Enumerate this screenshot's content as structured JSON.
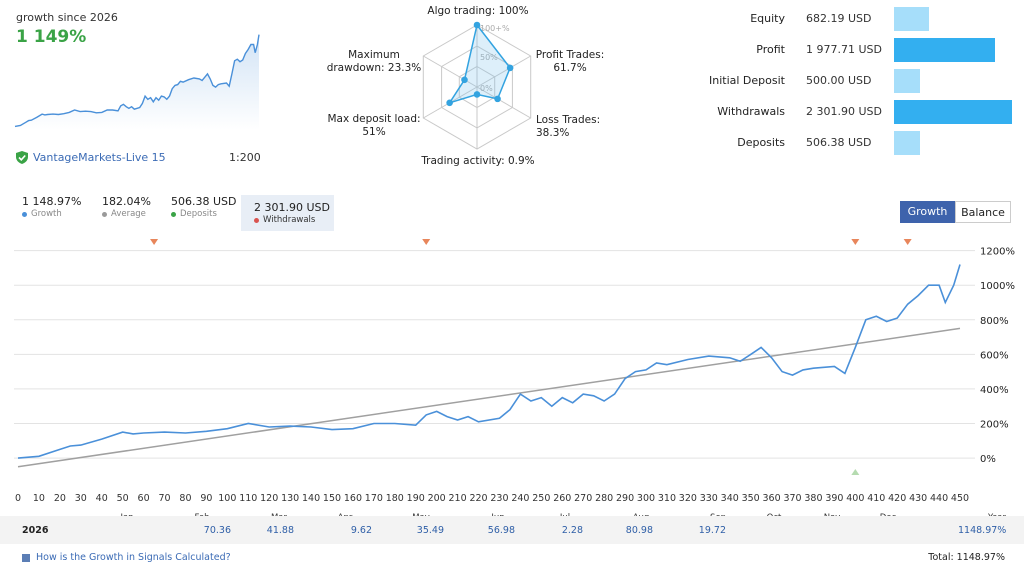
{
  "summary": {
    "growth_title": "growth since 2026",
    "growth_value": "1 149%",
    "broker": "VantageMarkets-Live 15",
    "leverage": "1:200",
    "growth_color": "#3aa346"
  },
  "radar": {
    "labels": {
      "algo": "Algo trading: 100%",
      "profit": [
        "Profit Trades:",
        "61.7%"
      ],
      "loss": "Loss Trades: 38.3%",
      "activity": "Trading activity: 0.9%",
      "load": [
        "Max deposit load:",
        "51%"
      ],
      "drawdown": [
        "Maximum",
        "drawdown: 23.3%"
      ]
    },
    "ticks": [
      "100+%",
      "50%",
      "0%"
    ],
    "values": [
      100,
      61.7,
      38.3,
      0.9,
      51,
      23.3
    ]
  },
  "stats": {
    "rows": [
      {
        "label": "Equity",
        "value": "682.19 USD",
        "amount": 682.19,
        "color": "#a6defa"
      },
      {
        "label": "Profit",
        "value": "1 977.71 USD",
        "amount": 1977.71,
        "color": "#33aff0"
      },
      {
        "label": "Initial Deposit",
        "value": "500.00 USD",
        "amount": 500.0,
        "color": "#a6defa"
      },
      {
        "label": "Withdrawals",
        "value": "2 301.90 USD",
        "amount": 2301.9,
        "color": "#33aff0"
      },
      {
        "label": "Deposits",
        "value": "506.38 USD",
        "amount": 506.38,
        "color": "#a6defa"
      }
    ]
  },
  "tabs": [
    {
      "value": "1 148.97%",
      "label": "Growth",
      "color": "#4a90d9"
    },
    {
      "value": "182.04%",
      "label": "Average",
      "color": "#9a9a9a"
    },
    {
      "value": "506.38 USD",
      "label": "Deposits",
      "color": "#3aa346"
    },
    {
      "value": "2 301.90 USD",
      "label": "Withdrawals",
      "color": "#d9534f"
    }
  ],
  "buttons": {
    "growth": "Growth",
    "balance": "Balance"
  },
  "chart_data": {
    "type": "line",
    "x_ticks": [
      0,
      10,
      20,
      30,
      40,
      50,
      60,
      70,
      80,
      90,
      100,
      110,
      120,
      130,
      140,
      150,
      160,
      170,
      180,
      190,
      200,
      210,
      220,
      230,
      240,
      250,
      260,
      270,
      280,
      290,
      300,
      310,
      320,
      330,
      340,
      350,
      360,
      370,
      380,
      390,
      400,
      410,
      420,
      430,
      440,
      450
    ],
    "y_ticks": [
      "1200%",
      "1000%",
      "800%",
      "600%",
      "400%",
      "200%",
      "0%"
    ],
    "ylim": [
      -150,
      1250
    ],
    "xlim": [
      0,
      450
    ],
    "months": [
      "Jan",
      "Feb",
      "Mar",
      "Apr",
      "May",
      "Jun",
      "Jul",
      "Aug",
      "Sep",
      "Oct",
      "Nov",
      "Dec"
    ],
    "series": [
      {
        "name": "Growth",
        "color": "#4a90d9",
        "x": [
          0,
          10,
          20,
          25,
          30,
          40,
          50,
          55,
          60,
          70,
          80,
          90,
          100,
          110,
          120,
          130,
          140,
          150,
          160,
          170,
          180,
          190,
          195,
          200,
          205,
          210,
          215,
          220,
          230,
          235,
          240,
          245,
          250,
          255,
          260,
          265,
          270,
          275,
          280,
          285,
          290,
          295,
          300,
          305,
          310,
          320,
          330,
          340,
          345,
          350,
          355,
          360,
          365,
          370,
          375,
          380,
          390,
          395,
          400,
          405,
          410,
          415,
          420,
          425,
          430,
          435,
          440,
          443,
          447,
          450
        ],
        "y": [
          0,
          10,
          50,
          70,
          75,
          110,
          150,
          140,
          145,
          150,
          145,
          155,
          170,
          200,
          180,
          185,
          180,
          165,
          170,
          200,
          200,
          190,
          250,
          270,
          240,
          220,
          240,
          210,
          230,
          280,
          370,
          330,
          350,
          300,
          350,
          320,
          370,
          360,
          330,
          370,
          460,
          500,
          510,
          550,
          540,
          570,
          590,
          580,
          560,
          600,
          640,
          580,
          500,
          480,
          510,
          520,
          530,
          490,
          640,
          800,
          820,
          790,
          810,
          890,
          940,
          1000,
          1000,
          900,
          1000,
          1120
        ]
      },
      {
        "name": "Average",
        "color": "#a0a0a0",
        "x": [
          0,
          450
        ],
        "y": [
          -50,
          750
        ]
      }
    ],
    "event_markers_top_x": [
      65,
      195,
      400,
      425
    ],
    "event_markers_bottom_x": [
      400
    ],
    "table": {
      "year": "2026",
      "header": "Year",
      "values": [
        "",
        "70.36",
        "41.88",
        "9.62",
        "35.49",
        "56.98",
        "2.28",
        "80.98",
        "19.72",
        "",
        "",
        ""
      ],
      "total_year": "1148.97%"
    }
  },
  "footer": {
    "link": "How is the Growth in Signals Calculated?",
    "total": "Total: 1148.97%"
  }
}
